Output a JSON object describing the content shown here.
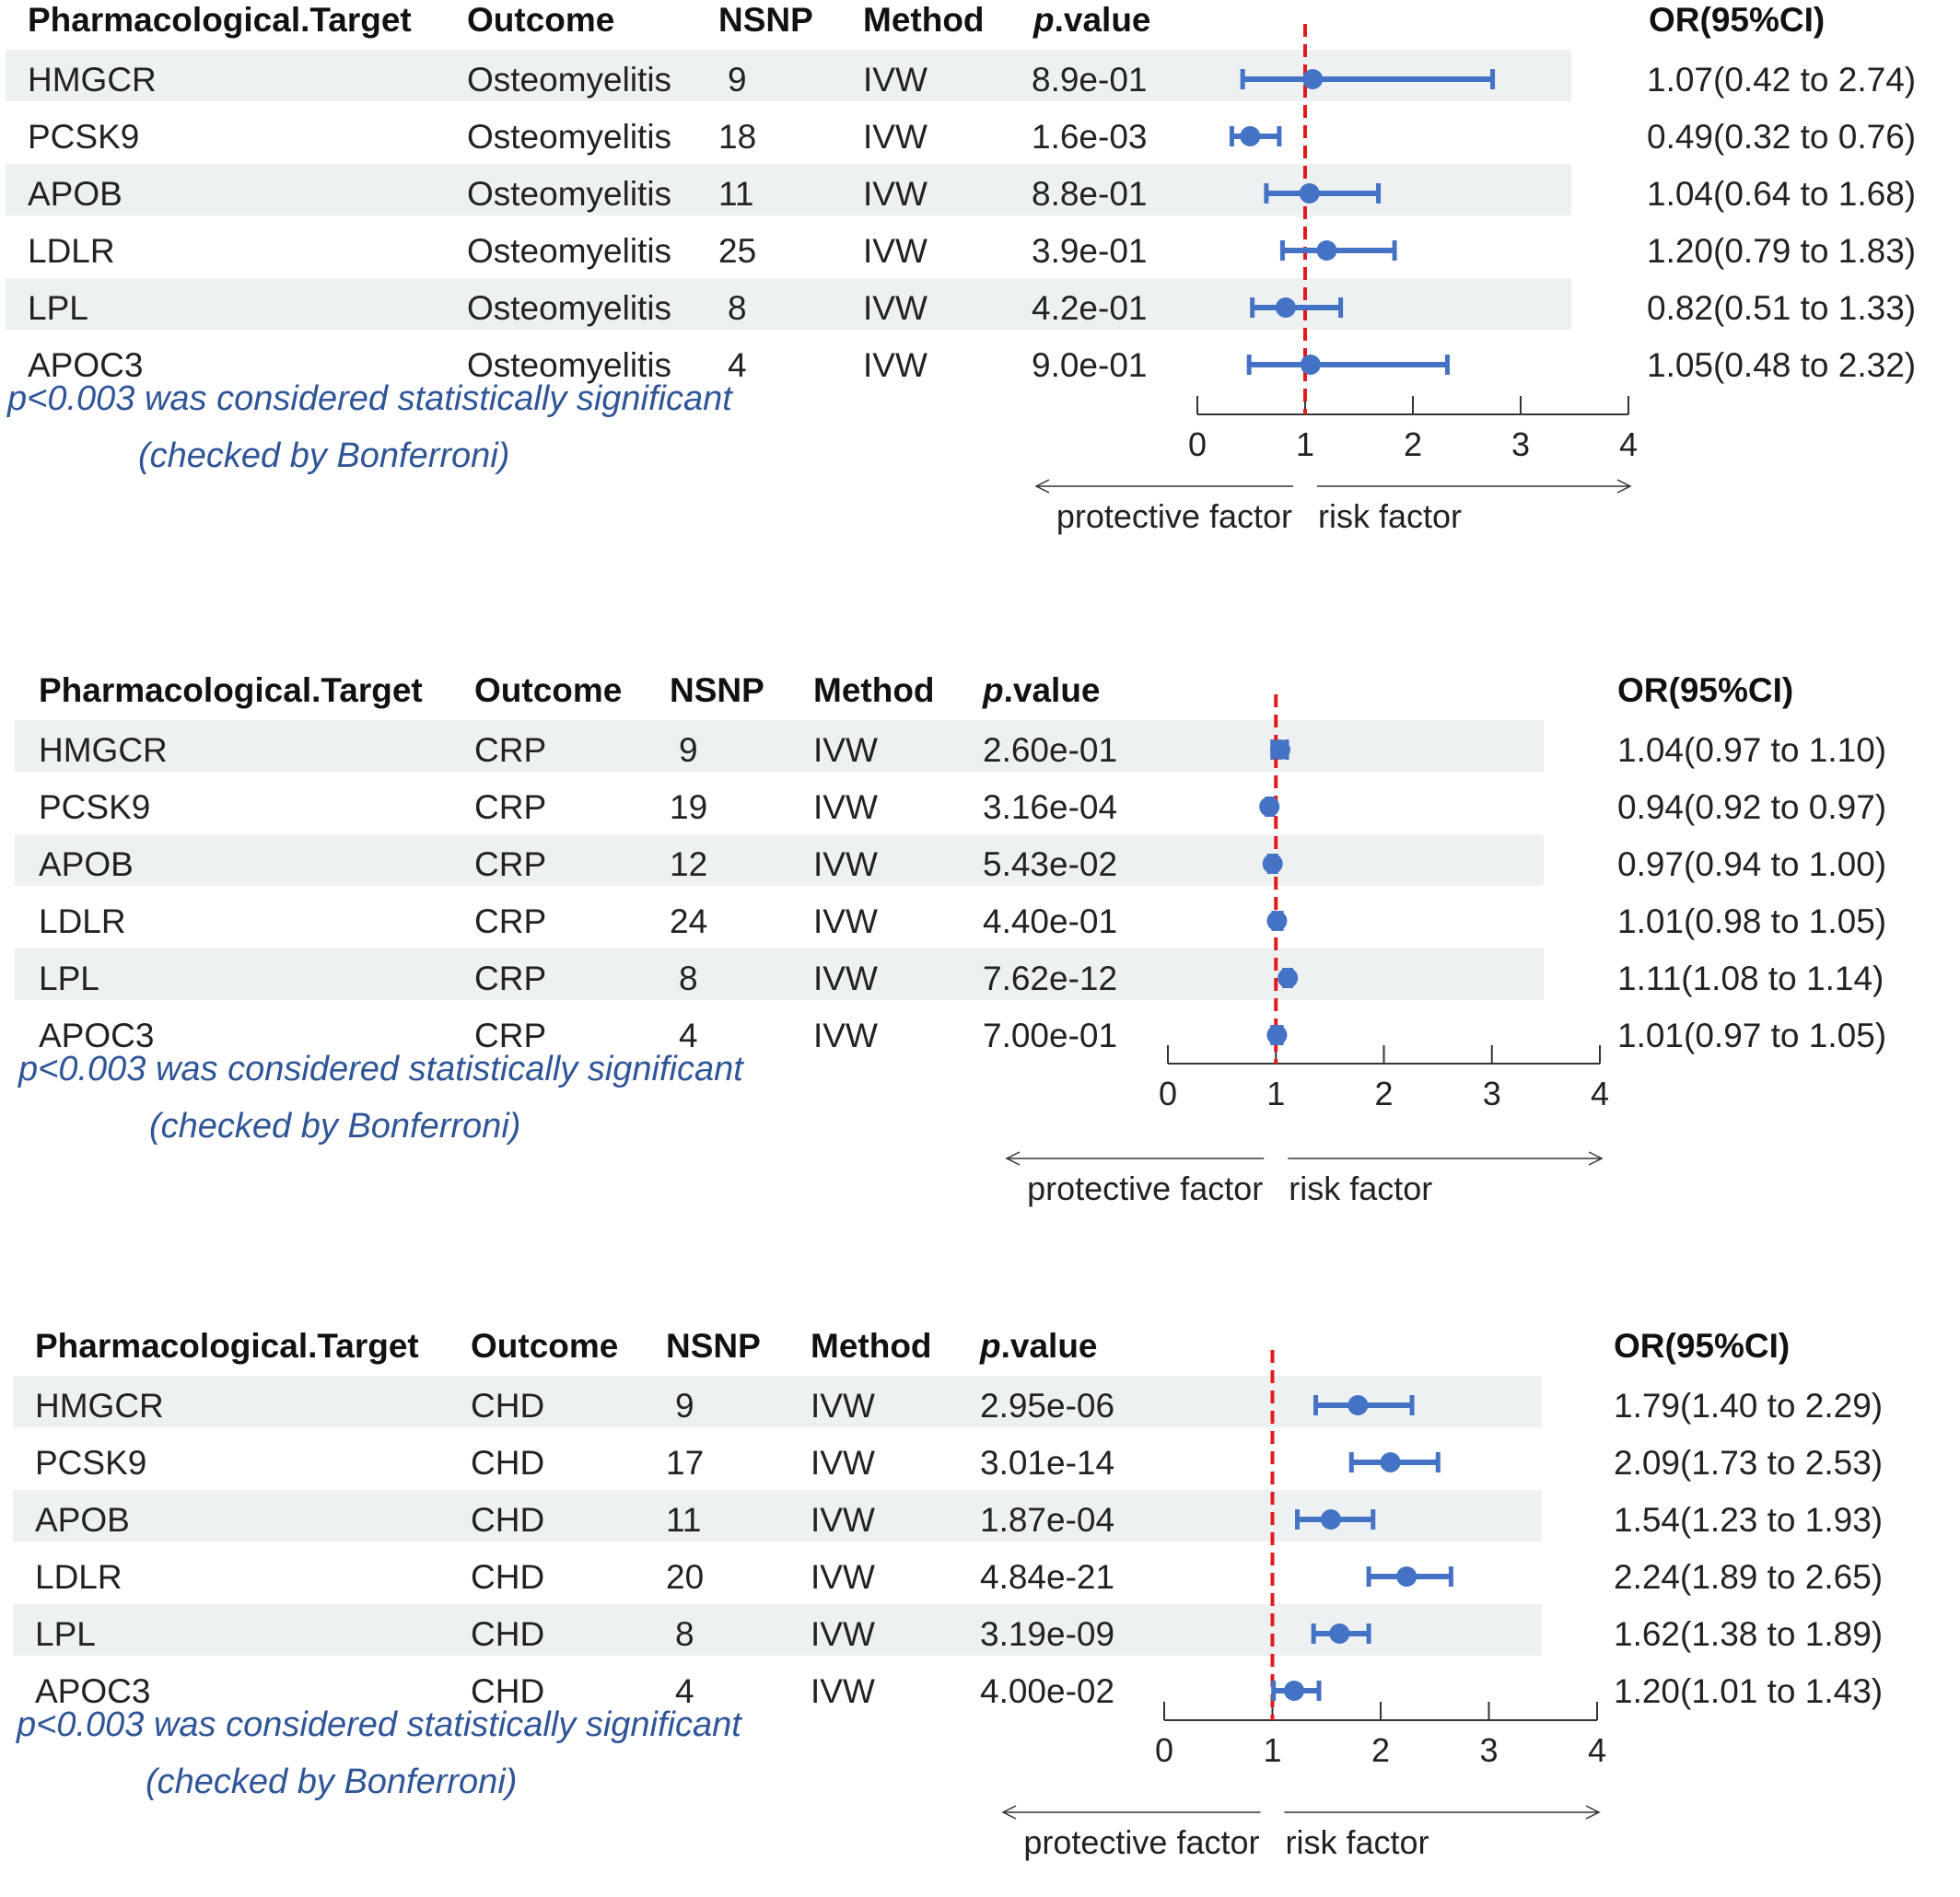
{
  "headers": {
    "target": "Pharmacological.Target",
    "outcome": "Outcome",
    "nsnp": "NSNP",
    "method": "Method",
    "pvalue_p": "p",
    "pvalue_rest": ".value",
    "or": "OR(95%CI)"
  },
  "note": {
    "line1_p": "p",
    "line1_rest": "<0.003 was considered statistically significant",
    "line2": "(checked by Bonferroni)"
  },
  "axis": {
    "ticks": [
      "0",
      "1",
      "2",
      "3",
      "4"
    ],
    "protective": "protective factor",
    "risk": "risk factor"
  },
  "colors": {
    "marker": "#4472c4",
    "refline": "#e31a1c",
    "note": "#2f5597",
    "stripe": "#eef1f1"
  },
  "panels": [
    {
      "rows": [
        {
          "target": "HMGCR",
          "outcome": "Osteomyelitis",
          "nsnp": "9",
          "method": "IVW",
          "pvalue": "8.9e-01",
          "or_text": "1.07(0.42 to 2.74)"
        },
        {
          "target": "PCSK9",
          "outcome": "Osteomyelitis",
          "nsnp": "18",
          "method": "IVW",
          "pvalue": "1.6e-03",
          "or_text": "0.49(0.32 to 0.76)"
        },
        {
          "target": "APOB",
          "outcome": "Osteomyelitis",
          "nsnp": "11",
          "method": "IVW",
          "pvalue": "8.8e-01",
          "or_text": "1.04(0.64 to 1.68)"
        },
        {
          "target": "LDLR",
          "outcome": "Osteomyelitis",
          "nsnp": "25",
          "method": "IVW",
          "pvalue": "3.9e-01",
          "or_text": "1.20(0.79 to 1.83)"
        },
        {
          "target": "LPL",
          "outcome": "Osteomyelitis",
          "nsnp": "8",
          "method": "IVW",
          "pvalue": "4.2e-01",
          "or_text": "0.82(0.51 to 1.33)"
        },
        {
          "target": "APOC3",
          "outcome": "Osteomyelitis",
          "nsnp": "4",
          "method": "IVW",
          "pvalue": "9.0e-01",
          "or_text": "1.05(0.48 to 2.32)"
        }
      ]
    },
    {
      "rows": [
        {
          "target": "HMGCR",
          "outcome": "CRP",
          "nsnp": "9",
          "method": "IVW",
          "pvalue": "2.60e-01",
          "or_text": "1.04(0.97 to 1.10)"
        },
        {
          "target": "PCSK9",
          "outcome": "CRP",
          "nsnp": "19",
          "method": "IVW",
          "pvalue": "3.16e-04",
          "or_text": "0.94(0.92 to 0.97)"
        },
        {
          "target": "APOB",
          "outcome": "CRP",
          "nsnp": "12",
          "method": "IVW",
          "pvalue": "5.43e-02",
          "or_text": "0.97(0.94 to 1.00)"
        },
        {
          "target": "LDLR",
          "outcome": "CRP",
          "nsnp": "24",
          "method": "IVW",
          "pvalue": "4.40e-01",
          "or_text": "1.01(0.98 to 1.05)"
        },
        {
          "target": "LPL",
          "outcome": "CRP",
          "nsnp": "8",
          "method": "IVW",
          "pvalue": "7.62e-12",
          "or_text": "1.11(1.08 to 1.14)"
        },
        {
          "target": "APOC3",
          "outcome": "CRP",
          "nsnp": "4",
          "method": "IVW",
          "pvalue": "7.00e-01",
          "or_text": "1.01(0.97 to 1.05)"
        }
      ]
    },
    {
      "rows": [
        {
          "target": "HMGCR",
          "outcome": "CHD",
          "nsnp": "9",
          "method": "IVW",
          "pvalue": "2.95e-06",
          "or_text": "1.79(1.40 to 2.29)"
        },
        {
          "target": "PCSK9",
          "outcome": "CHD",
          "nsnp": "17",
          "method": "IVW",
          "pvalue": "3.01e-14",
          "or_text": "2.09(1.73 to 2.53)"
        },
        {
          "target": "APOB",
          "outcome": "CHD",
          "nsnp": "11",
          "method": "IVW",
          "pvalue": "1.87e-04",
          "or_text": "1.54(1.23 to 1.93)"
        },
        {
          "target": "LDLR",
          "outcome": "CHD",
          "nsnp": "20",
          "method": "IVW",
          "pvalue": "4.84e-21",
          "or_text": "2.24(1.89 to 2.65)"
        },
        {
          "target": "LPL",
          "outcome": "CHD",
          "nsnp": "8",
          "method": "IVW",
          "pvalue": "3.19e-09",
          "or_text": "1.62(1.38 to 1.89)"
        },
        {
          "target": "APOC3",
          "outcome": "CHD",
          "nsnp": "4",
          "method": "IVW",
          "pvalue": "4.00e-02",
          "or_text": "1.20(1.01 to 1.43)"
        }
      ]
    }
  ],
  "chart_data": [
    {
      "type": "forest",
      "x_scale": "odds ratio",
      "xlim": [
        0,
        4
      ],
      "reference_line": 1,
      "categories": [
        "HMGCR",
        "PCSK9",
        "APOB",
        "LDLR",
        "LPL",
        "APOC3"
      ],
      "outcome": "Osteomyelitis",
      "or": [
        1.07,
        0.49,
        1.04,
        1.2,
        0.82,
        1.05
      ],
      "lower": [
        0.42,
        0.32,
        0.64,
        0.79,
        0.51,
        0.48
      ],
      "upper": [
        2.74,
        0.76,
        1.68,
        1.83,
        1.33,
        2.32
      ]
    },
    {
      "type": "forest",
      "x_scale": "odds ratio",
      "xlim": [
        0,
        4
      ],
      "reference_line": 1,
      "categories": [
        "HMGCR",
        "PCSK9",
        "APOB",
        "LDLR",
        "LPL",
        "APOC3"
      ],
      "outcome": "CRP",
      "or": [
        1.04,
        0.94,
        0.97,
        1.01,
        1.11,
        1.01
      ],
      "lower": [
        0.97,
        0.92,
        0.94,
        0.98,
        1.08,
        0.97
      ],
      "upper": [
        1.1,
        0.97,
        1.0,
        1.05,
        1.14,
        1.05
      ]
    },
    {
      "type": "forest",
      "x_scale": "odds ratio",
      "xlim": [
        0,
        4
      ],
      "reference_line": 1,
      "categories": [
        "HMGCR",
        "PCSK9",
        "APOB",
        "LDLR",
        "LPL",
        "APOC3"
      ],
      "outcome": "CHD",
      "or": [
        1.79,
        2.09,
        1.54,
        2.24,
        1.62,
        1.2
      ],
      "lower": [
        1.4,
        1.73,
        1.23,
        1.89,
        1.38,
        1.01
      ],
      "upper": [
        2.29,
        2.53,
        1.93,
        2.65,
        1.89,
        1.43
      ]
    }
  ]
}
